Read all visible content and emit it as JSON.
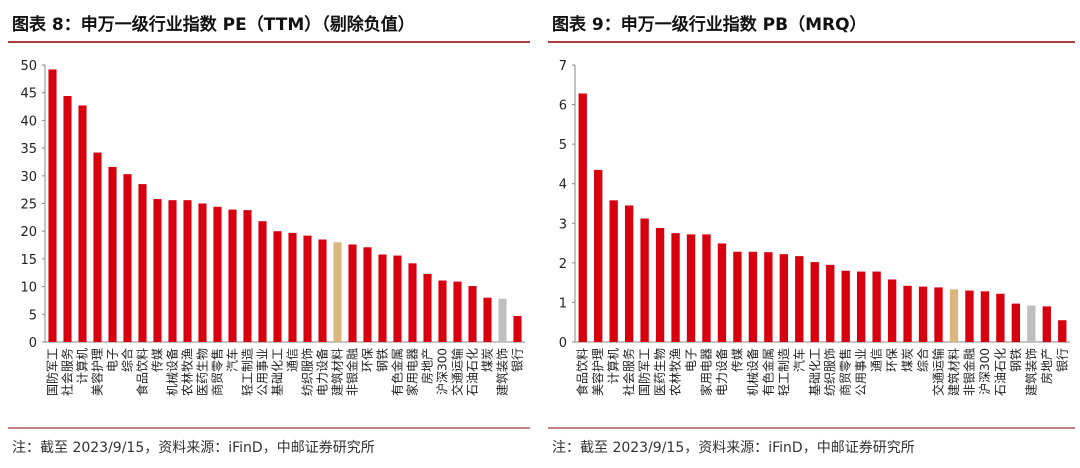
{
  "chart_data": [
    {
      "type": "bar",
      "title": "图表 8：申万一级行业指数 PE（TTM）（剔除负值）",
      "note": "注：截至 2023/9/15，资料来源：iFinD，中邮证券研究所",
      "categories": [
        "国防军工",
        "社会服务",
        "计算机",
        "美容护理",
        "电子",
        "综合",
        "食品饮料",
        "传媒",
        "机械设备",
        "农林牧渔",
        "医药生物",
        "商贸零售",
        "汽车",
        "轻工制造",
        "公用事业",
        "基础化工",
        "通信",
        "纺织服饰",
        "电力设备",
        "建筑材料",
        "非银金融",
        "环保",
        "钢铁",
        "有色金属",
        "家用电器",
        "房地产",
        "沪深300",
        "交通运输",
        "石油石化",
        "煤炭",
        "建筑装饰",
        "银行"
      ],
      "values": [
        49.2,
        44.4,
        42.7,
        34.2,
        31.6,
        30.3,
        28.5,
        25.8,
        25.6,
        25.6,
        25.0,
        24.4,
        23.9,
        23.8,
        21.8,
        20.0,
        19.7,
        19.2,
        18.5,
        18.0,
        17.6,
        17.1,
        15.8,
        15.6,
        14.2,
        12.3,
        11.1,
        10.9,
        10.1,
        8.0,
        7.8,
        4.7
      ],
      "colors": [
        "#d7000f",
        "#d7000f",
        "#d7000f",
        "#d7000f",
        "#d7000f",
        "#d7000f",
        "#d7000f",
        "#d7000f",
        "#d7000f",
        "#d7000f",
        "#d7000f",
        "#d7000f",
        "#d7000f",
        "#d7000f",
        "#d7000f",
        "#d7000f",
        "#d7000f",
        "#d7000f",
        "#d7000f",
        "#d9b77e",
        "#d7000f",
        "#d7000f",
        "#d7000f",
        "#d7000f",
        "#d7000f",
        "#d7000f",
        "#d7000f",
        "#d7000f",
        "#d7000f",
        "#d7000f",
        "#bfbfbf",
        "#d7000f"
      ],
      "ylim": [
        0,
        50
      ],
      "yticks": [
        0,
        5,
        10,
        15,
        20,
        25,
        30,
        35,
        40,
        45,
        50
      ]
    },
    {
      "type": "bar",
      "title": "图表 9：申万一级行业指数 PB（MRQ）",
      "note": "注：截至 2023/9/15，资料来源：iFinD，中邮证券研究所",
      "categories": [
        "食品饮料",
        "美容护理",
        "计算机",
        "社会服务",
        "国防军工",
        "医药生物",
        "农林牧渔",
        "电子",
        "家用电器",
        "电力设备",
        "传媒",
        "机械设备",
        "有色金属",
        "轻工制造",
        "汽车",
        "基础化工",
        "纺织服饰",
        "商贸零售",
        "公用事业",
        "通信",
        "环保",
        "煤炭",
        "综合",
        "交通运输",
        "建筑材料",
        "非银金融",
        "沪深300",
        "石油石化",
        "钢铁",
        "建筑装饰",
        "房地产",
        "银行"
      ],
      "values": [
        6.28,
        4.35,
        3.58,
        3.45,
        3.12,
        2.88,
        2.75,
        2.72,
        2.72,
        2.49,
        2.28,
        2.28,
        2.27,
        2.22,
        2.17,
        2.02,
        1.95,
        1.8,
        1.78,
        1.78,
        1.58,
        1.42,
        1.4,
        1.38,
        1.33,
        1.3,
        1.28,
        1.22,
        0.97,
        0.92,
        0.9,
        0.55
      ],
      "colors": [
        "#d7000f",
        "#d7000f",
        "#d7000f",
        "#d7000f",
        "#d7000f",
        "#d7000f",
        "#d7000f",
        "#d7000f",
        "#d7000f",
        "#d7000f",
        "#d7000f",
        "#d7000f",
        "#d7000f",
        "#d7000f",
        "#d7000f",
        "#d7000f",
        "#d7000f",
        "#d7000f",
        "#d7000f",
        "#d7000f",
        "#d7000f",
        "#d7000f",
        "#d7000f",
        "#d7000f",
        "#d9b77e",
        "#d7000f",
        "#d7000f",
        "#d7000f",
        "#d7000f",
        "#bfbfbf",
        "#d7000f",
        "#d7000f"
      ],
      "ylim": [
        0,
        7
      ],
      "yticks": [
        0,
        1,
        2,
        3,
        4,
        5,
        6,
        7
      ]
    }
  ]
}
